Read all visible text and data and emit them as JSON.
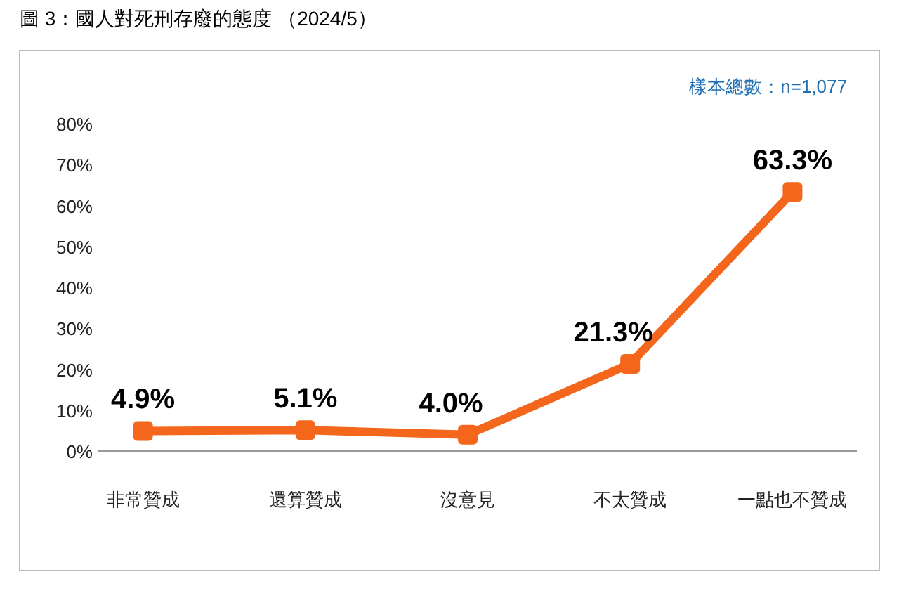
{
  "chart_data": {
    "type": "line",
    "title": "圖 3：國人對死刑存廢的態度 （2024/5）",
    "annotations": [
      "樣本總數：n=1,077"
    ],
    "categories": [
      "非常贊成",
      "還算贊成",
      "沒意見",
      "不太贊成",
      "一點也不贊成"
    ],
    "values": [
      4.9,
      5.1,
      4.0,
      21.3,
      63.3
    ],
    "value_labels": [
      "4.9%",
      "5.1%",
      "4.0%",
      "21.3%",
      "63.3%"
    ],
    "color": "#f4661b",
    "marker": "square",
    "ylim": [
      0,
      80
    ],
    "yticks": [
      {
        "value": 0,
        "label": "0%"
      },
      {
        "value": 10,
        "label": "10%"
      },
      {
        "value": 20,
        "label": "20%"
      },
      {
        "value": 30,
        "label": "30%"
      },
      {
        "value": 40,
        "label": "40%"
      },
      {
        "value": 50,
        "label": "50%"
      },
      {
        "value": 60,
        "label": "60%"
      },
      {
        "value": 70,
        "label": "70%"
      },
      {
        "value": 80,
        "label": "80%"
      }
    ]
  }
}
